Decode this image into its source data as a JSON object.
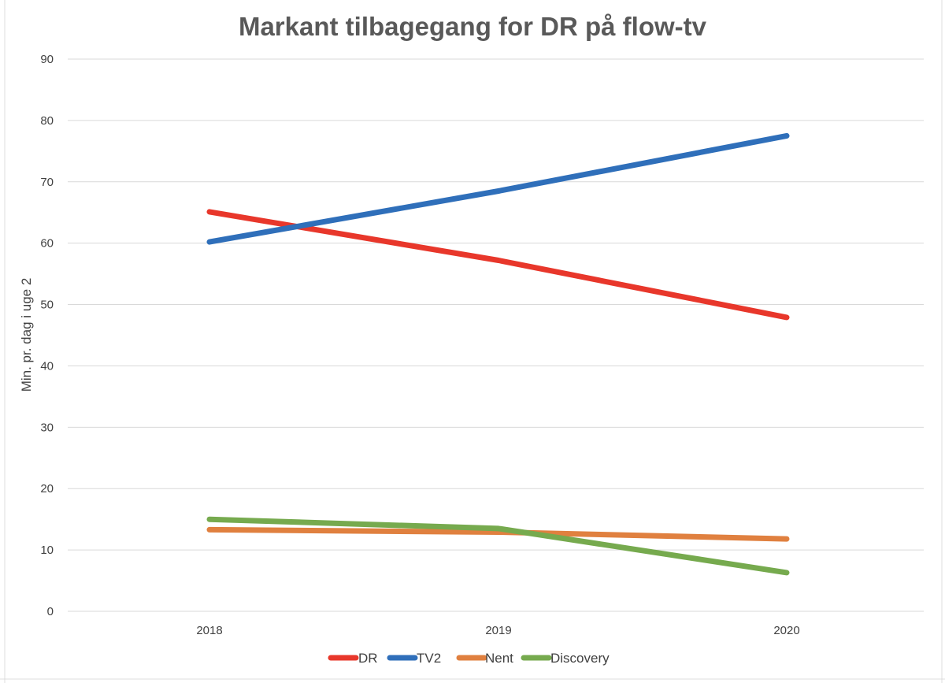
{
  "chart_data": {
    "type": "line",
    "title": "Markant tilbagegang for DR på flow-tv",
    "xlabel": "",
    "ylabel": "Min. pr. dag i uge 2",
    "ylim": [
      0,
      90
    ],
    "yticks": [
      "0",
      "10",
      "20",
      "30",
      "40",
      "50",
      "60",
      "70",
      "80",
      "90"
    ],
    "categories": [
      "2018",
      "2019",
      "2020"
    ],
    "grid": true,
    "legend_position": "bottom",
    "series": [
      {
        "name": "DR",
        "color": "#E8372B",
        "values": [
          65.1,
          57.2,
          47.9
        ]
      },
      {
        "name": "TV2",
        "color": "#2F6FBA",
        "values": [
          60.2,
          68.5,
          77.5
        ]
      },
      {
        "name": "Nent",
        "color": "#E0803F",
        "values": [
          13.3,
          12.9,
          11.8
        ]
      },
      {
        "name": "Discovery",
        "color": "#76AA4E",
        "values": [
          15.0,
          13.5,
          6.3
        ]
      }
    ]
  }
}
